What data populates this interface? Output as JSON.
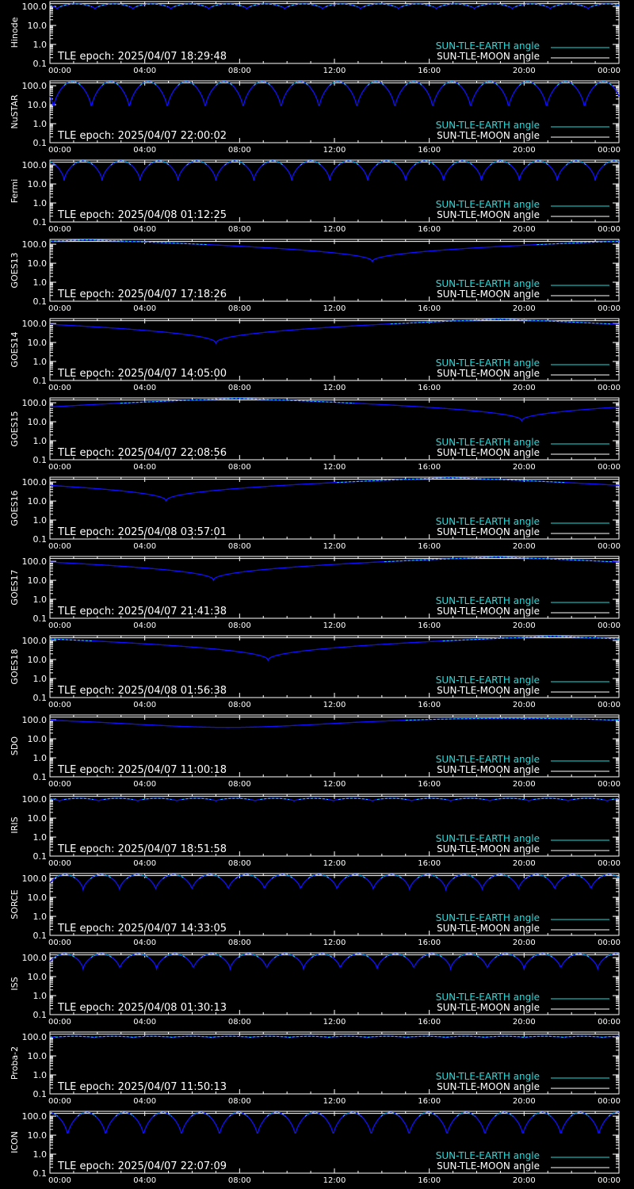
{
  "legend": {
    "earth_label": "SUN-TLE-EARTH angle",
    "moon_label": "SUN-TLE-MOON angle",
    "earth_color": "#22dddd",
    "moon_color": "#ffffff",
    "curve_color": "#1010ff"
  },
  "chart_data": [
    {
      "type": "line",
      "ylabel": "Hinode",
      "epoch_text": "TLE epoch: 2025/04/07 18:29:48",
      "yscale": "log",
      "ylim": [
        0.1,
        180
      ],
      "xlim": [
        "00:00",
        "24:00"
      ],
      "x_ticks": [
        "00:00",
        "04:00",
        "08:00",
        "12:00",
        "16:00",
        "20:00",
        "00:00"
      ],
      "y_ticks": [
        "100.0",
        "10.0",
        "1.0",
        "0.1"
      ],
      "curve": {
        "kind": "oscillating",
        "period_hours": 1.6,
        "phase_hours": 0.3,
        "max_deg": 135,
        "min_deg": 75
      },
      "moon_deg": 140
    },
    {
      "type": "line",
      "ylabel": "NuSTAR",
      "epoch_text": "TLE epoch: 2025/04/07 22:00:02",
      "yscale": "log",
      "ylim": [
        0.1,
        180
      ],
      "xlim": [
        "00:00",
        "24:00"
      ],
      "x_ticks": [
        "00:00",
        "04:00",
        "08:00",
        "12:00",
        "16:00",
        "20:00",
        "00:00"
      ],
      "y_ticks": [
        "100.0",
        "10.0",
        "1.0",
        "0.1"
      ],
      "curve": {
        "kind": "oscillating",
        "period_hours": 1.6,
        "phase_hours": 1.75,
        "max_deg": 165,
        "min_deg": 6
      },
      "moon_deg": 140
    },
    {
      "type": "line",
      "ylabel": "Fermi",
      "epoch_text": "TLE epoch: 2025/04/08 01:12:25",
      "yscale": "log",
      "ylim": [
        0.1,
        180
      ],
      "xlim": [
        "00:00",
        "24:00"
      ],
      "x_ticks": [
        "00:00",
        "04:00",
        "08:00",
        "12:00",
        "16:00",
        "20:00",
        "00:00"
      ],
      "y_ticks": [
        "100.0",
        "10.0",
        "1.0",
        "0.1"
      ],
      "curve": {
        "kind": "oscillating",
        "period_hours": 1.6,
        "phase_hours": 0.6,
        "max_deg": 165,
        "min_deg": 15
      },
      "moon_deg": 140
    },
    {
      "type": "line",
      "ylabel": "GOES13",
      "epoch_text": "TLE epoch: 2025/04/07 17:18:26",
      "yscale": "log",
      "ylim": [
        0.1,
        180
      ],
      "xlim": [
        "00:00",
        "24:00"
      ],
      "x_ticks": [
        "00:00",
        "04:00",
        "08:00",
        "12:00",
        "16:00",
        "20:00",
        "00:00"
      ],
      "y_ticks": [
        "100.0",
        "10.0",
        "1.0",
        "0.1"
      ],
      "curve": {
        "kind": "geo",
        "min_hour": 13.6,
        "max_deg": 170,
        "min_deg": 12
      },
      "moon_deg": 140
    },
    {
      "type": "line",
      "ylabel": "GOES14",
      "epoch_text": "TLE epoch: 2025/04/07 14:05:00",
      "yscale": "log",
      "ylim": [
        0.1,
        180
      ],
      "xlim": [
        "00:00",
        "24:00"
      ],
      "x_ticks": [
        "00:00",
        "04:00",
        "08:00",
        "12:00",
        "16:00",
        "20:00",
        "00:00"
      ],
      "y_ticks": [
        "100.0",
        "10.0",
        "1.0",
        "0.1"
      ],
      "curve": {
        "kind": "geo",
        "min_hour": 7.0,
        "max_deg": 170,
        "min_deg": 9
      },
      "moon_deg": 140
    },
    {
      "type": "line",
      "ylabel": "GOES15",
      "epoch_text": "TLE epoch: 2025/04/07 22:08:56",
      "yscale": "log",
      "ylim": [
        0.1,
        180
      ],
      "xlim": [
        "00:00",
        "24:00"
      ],
      "x_ticks": [
        "00:00",
        "04:00",
        "08:00",
        "12:00",
        "16:00",
        "20:00",
        "00:00"
      ],
      "y_ticks": [
        "100.0",
        "10.0",
        "1.0",
        "0.1"
      ],
      "curve": {
        "kind": "geo",
        "min_hour": 19.9,
        "max_deg": 170,
        "min_deg": 11
      },
      "moon_deg": 140
    },
    {
      "type": "line",
      "ylabel": "GOES16",
      "epoch_text": "TLE epoch: 2025/04/08 03:57:01",
      "yscale": "log",
      "ylim": [
        0.1,
        180
      ],
      "xlim": [
        "00:00",
        "24:00"
      ],
      "x_ticks": [
        "00:00",
        "04:00",
        "08:00",
        "12:00",
        "16:00",
        "20:00",
        "00:00"
      ],
      "y_ticks": [
        "100.0",
        "10.0",
        "1.0",
        "0.1"
      ],
      "curve": {
        "kind": "geo",
        "min_hour": 4.9,
        "max_deg": 170,
        "min_deg": 10
      },
      "moon_deg": 140
    },
    {
      "type": "line",
      "ylabel": "GOES17",
      "epoch_text": "TLE epoch: 2025/04/07 21:41:38",
      "yscale": "log",
      "ylim": [
        0.1,
        180
      ],
      "xlim": [
        "00:00",
        "24:00"
      ],
      "x_ticks": [
        "00:00",
        "04:00",
        "08:00",
        "12:00",
        "16:00",
        "20:00",
        "00:00"
      ],
      "y_ticks": [
        "100.0",
        "10.0",
        "1.0",
        "0.1"
      ],
      "curve": {
        "kind": "geo",
        "min_hour": 6.9,
        "max_deg": 170,
        "min_deg": 10
      },
      "moon_deg": 140
    },
    {
      "type": "line",
      "ylabel": "GOES18",
      "epoch_text": "TLE epoch: 2025/04/08 01:56:38",
      "yscale": "log",
      "ylim": [
        0.1,
        180
      ],
      "xlim": [
        "00:00",
        "24:00"
      ],
      "x_ticks": [
        "00:00",
        "04:00",
        "08:00",
        "12:00",
        "16:00",
        "20:00",
        "00:00"
      ],
      "y_ticks": [
        "100.0",
        "10.0",
        "1.0",
        "0.1"
      ],
      "curve": {
        "kind": "geo",
        "min_hour": 9.2,
        "max_deg": 170,
        "min_deg": 9
      },
      "moon_deg": 140
    },
    {
      "type": "line",
      "ylabel": "SDO",
      "epoch_text": "TLE epoch: 2025/04/07 11:00:18",
      "yscale": "log",
      "ylim": [
        0.1,
        180
      ],
      "xlim": [
        "00:00",
        "24:00"
      ],
      "x_ticks": [
        "00:00",
        "04:00",
        "08:00",
        "12:00",
        "16:00",
        "20:00",
        "00:00"
      ],
      "y_ticks": [
        "100.0",
        "10.0",
        "1.0",
        "0.1"
      ],
      "curve": {
        "kind": "smooth",
        "min_hour": 7.5,
        "max_deg": 120,
        "min_deg": 40
      },
      "moon_deg": 140
    },
    {
      "type": "line",
      "ylabel": "IRIS",
      "epoch_text": "TLE epoch: 2025/04/07 18:51:58",
      "yscale": "log",
      "ylim": [
        0.1,
        180
      ],
      "xlim": [
        "00:00",
        "24:00"
      ],
      "x_ticks": [
        "00:00",
        "04:00",
        "08:00",
        "12:00",
        "16:00",
        "20:00",
        "00:00"
      ],
      "y_ticks": [
        "100.0",
        "10.0",
        "1.0",
        "0.1"
      ],
      "curve": {
        "kind": "oscillating",
        "period_hours": 1.65,
        "phase_hours": 0.4,
        "max_deg": 110,
        "min_deg": 80
      },
      "moon_deg": 140
    },
    {
      "type": "line",
      "ylabel": "SORCE",
      "epoch_text": "TLE epoch: 2025/04/07 14:33:05",
      "yscale": "log",
      "ylim": [
        0.1,
        180
      ],
      "xlim": [
        "00:00",
        "24:00"
      ],
      "x_ticks": [
        "00:00",
        "04:00",
        "08:00",
        "12:00",
        "16:00",
        "20:00",
        "00:00"
      ],
      "y_ticks": [
        "100.0",
        "10.0",
        "1.0",
        "0.1"
      ],
      "curve": {
        "kind": "oscillating",
        "period_hours": 1.53,
        "phase_hours": 1.4,
        "max_deg": 160,
        "min_deg": 25
      },
      "moon_deg": 140
    },
    {
      "type": "line",
      "ylabel": "ISS",
      "epoch_text": "TLE epoch: 2025/04/08 01:30:13",
      "yscale": "log",
      "ylim": [
        0.1,
        180
      ],
      "xlim": [
        "00:00",
        "24:00"
      ],
      "x_ticks": [
        "00:00",
        "04:00",
        "08:00",
        "12:00",
        "16:00",
        "20:00",
        "00:00"
      ],
      "y_ticks": [
        "100.0",
        "10.0",
        "1.0",
        "0.1"
      ],
      "curve": {
        "kind": "oscillating",
        "period_hours": 1.55,
        "phase_hours": 1.4,
        "max_deg": 160,
        "min_deg": 25
      },
      "moon_deg": 140
    },
    {
      "type": "line",
      "ylabel": "Proba-2",
      "epoch_text": "TLE epoch: 2025/04/07 11:50:13",
      "yscale": "log",
      "ylim": [
        0.1,
        180
      ],
      "xlim": [
        "00:00",
        "24:00"
      ],
      "x_ticks": [
        "00:00",
        "04:00",
        "08:00",
        "12:00",
        "16:00",
        "20:00",
        "00:00"
      ],
      "y_ticks": [
        "100.0",
        "10.0",
        "1.0",
        "0.1"
      ],
      "curve": {
        "kind": "oscillating",
        "period_hours": 1.65,
        "phase_hours": 0.2,
        "max_deg": 108,
        "min_deg": 95
      },
      "moon_deg": 140
    },
    {
      "type": "line",
      "ylabel": "ICON",
      "epoch_text": "TLE epoch: 2025/04/07 22:07:09",
      "yscale": "log",
      "ylim": [
        0.1,
        180
      ],
      "xlim": [
        "00:00",
        "24:00"
      ],
      "x_ticks": [
        "00:00",
        "04:00",
        "08:00",
        "12:00",
        "16:00",
        "20:00",
        "00:00"
      ],
      "y_ticks": [
        "100.0",
        "10.0",
        "1.0",
        "0.1"
      ],
      "curve": {
        "kind": "oscillating",
        "period_hours": 1.6,
        "phase_hours": 0.75,
        "max_deg": 160,
        "min_deg": 9
      },
      "moon_deg": 140
    }
  ]
}
